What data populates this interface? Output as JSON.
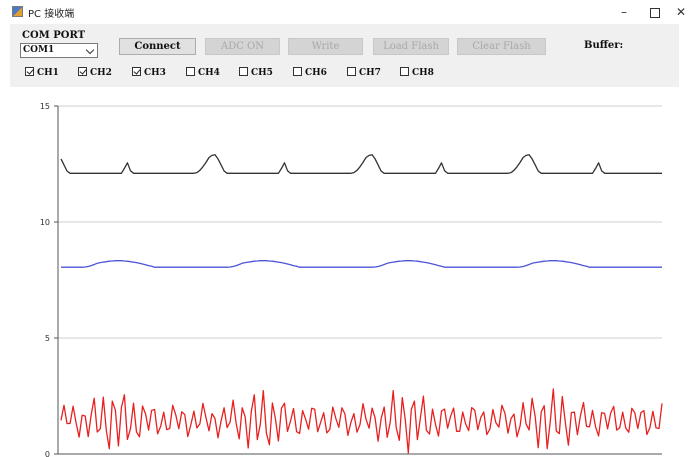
{
  "window": {
    "title": "PC 接收端",
    "min_label": "–",
    "close_label": "✕"
  },
  "toolbar": {
    "com_port_label": "COM PORT",
    "com_port_value": "COM1",
    "buttons": [
      {
        "label": "Connect",
        "enabled": true
      },
      {
        "label": "ADC ON",
        "enabled": false
      },
      {
        "label": "Write",
        "enabled": false
      },
      {
        "label": "Load Flash",
        "enabled": false
      },
      {
        "label": "Clear Flash",
        "enabled": false
      }
    ],
    "buffer_label": "Buffer:"
  },
  "channels": [
    {
      "label": "CH1",
      "checked": true
    },
    {
      "label": "CH2",
      "checked": true
    },
    {
      "label": "CH3",
      "checked": true
    },
    {
      "label": "CH4",
      "checked": false
    },
    {
      "label": "CH5",
      "checked": false
    },
    {
      "label": "CH6",
      "checked": false
    },
    {
      "label": "CH7",
      "checked": false
    },
    {
      "label": "CH8",
      "checked": false
    }
  ],
  "chart_data": {
    "type": "line",
    "title": "",
    "xlabel": "",
    "ylabel": "",
    "ylim": [
      0,
      15
    ],
    "yticks": [
      "0",
      "5",
      "10",
      "15"
    ],
    "grid": true,
    "legend": "none",
    "x_count": 200,
    "series": [
      {
        "color": "#333333",
        "description_values": {
          "baseline": 12.1,
          "cycle_samples": 50,
          "peak": 12.9,
          "notch": 12.6
        },
        "values": []
      },
      {
        "color": "#4a55d6",
        "values": []
      },
      {
        "color": "#e82020",
        "values": []
      }
    ]
  }
}
